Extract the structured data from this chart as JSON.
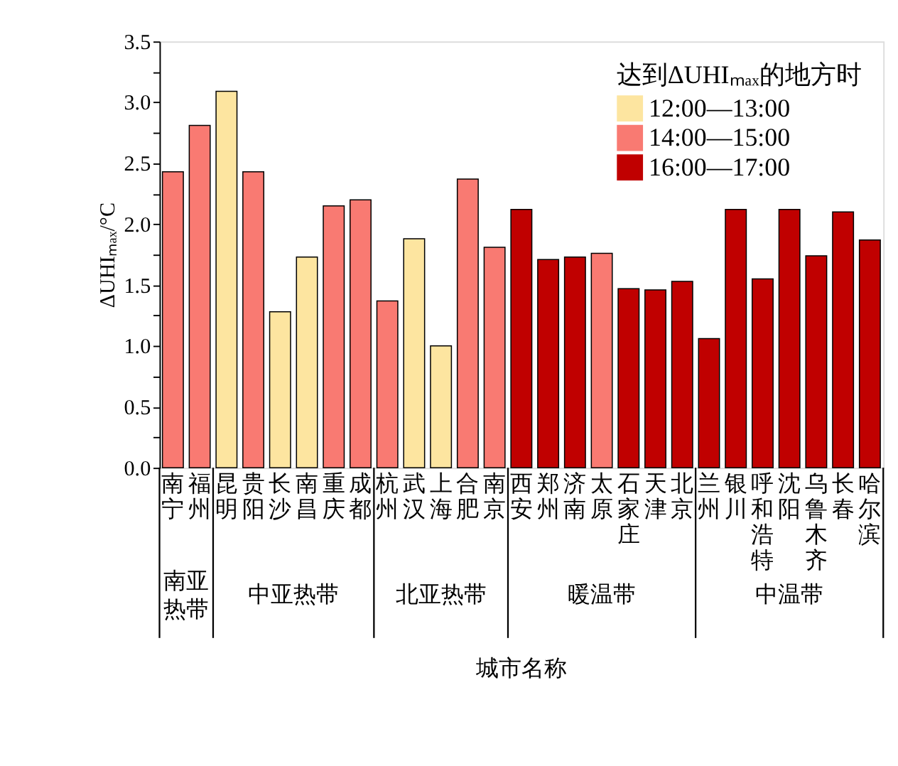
{
  "chart_data": {
    "type": "bar",
    "xlabel": "城市名称",
    "ylabel": "ΔUHIₘₐₓ/°C",
    "legend_title": "达到ΔUHIₘₐₓ的地方时",
    "legend": "top right",
    "categories": [
      "南宁",
      "福州",
      "昆明",
      "贵阳",
      "长沙",
      "南昌",
      "重庆",
      "成都",
      "杭州",
      "武汉",
      "上海",
      "合肥",
      "南京",
      "西安",
      "郑州",
      "济南",
      "太原",
      "石家庄",
      "天津",
      "北京",
      "兰州",
      "银川",
      "呼和浩特",
      "沈阳",
      "乌鲁木齐",
      "长春",
      "哈尔滨"
    ],
    "series": [
      {
        "name": "12:00—13:00",
        "color": "#fde5a0",
        "values": [
          null,
          null,
          3.09,
          null,
          1.28,
          1.73,
          null,
          null,
          null,
          1.88,
          1.0,
          null,
          null,
          null,
          null,
          null,
          null,
          null,
          null,
          null,
          null,
          null,
          null,
          null,
          null,
          null,
          null
        ]
      },
      {
        "name": "14:00—15:00",
        "color": "#f97a72",
        "values": [
          2.43,
          2.81,
          null,
          2.43,
          null,
          null,
          2.15,
          2.2,
          1.37,
          null,
          null,
          2.37,
          1.81,
          null,
          null,
          null,
          1.76,
          null,
          null,
          null,
          null,
          null,
          null,
          null,
          null,
          null,
          null
        ]
      },
      {
        "name": "16:00—17:00",
        "color": "#c00000",
        "values": [
          null,
          null,
          null,
          null,
          null,
          null,
          null,
          null,
          null,
          null,
          null,
          null,
          null,
          2.12,
          1.71,
          1.73,
          null,
          1.47,
          1.46,
          1.53,
          1.06,
          2.12,
          1.55,
          2.12,
          1.74,
          2.1,
          1.87
        ]
      }
    ],
    "ylim": [
      0,
      3.5
    ],
    "yticks": [
      {
        "value": 0,
        "label": "0.0"
      },
      {
        "value": 0.25,
        "label": null
      },
      0.5,
      {
        "value": 0.75,
        "label": null
      },
      {
        "value": 1,
        "label": "1.0"
      },
      {
        "value": 1.25,
        "label": null
      },
      1.5,
      {
        "value": 1.75,
        "label": null
      },
      {
        "value": 2,
        "label": "2.0"
      },
      {
        "value": 2.25,
        "label": null
      },
      2.5,
      {
        "value": 2.75,
        "label": null
      },
      {
        "value": 3,
        "label": "3.0"
      },
      {
        "value": 3.25,
        "label": null
      },
      3.5
    ],
    "grid": false,
    "annotations": [
      "南亚热带",
      "中亚热带",
      "北亚热带",
      "暖温带",
      "中温带"
    ]
  }
}
